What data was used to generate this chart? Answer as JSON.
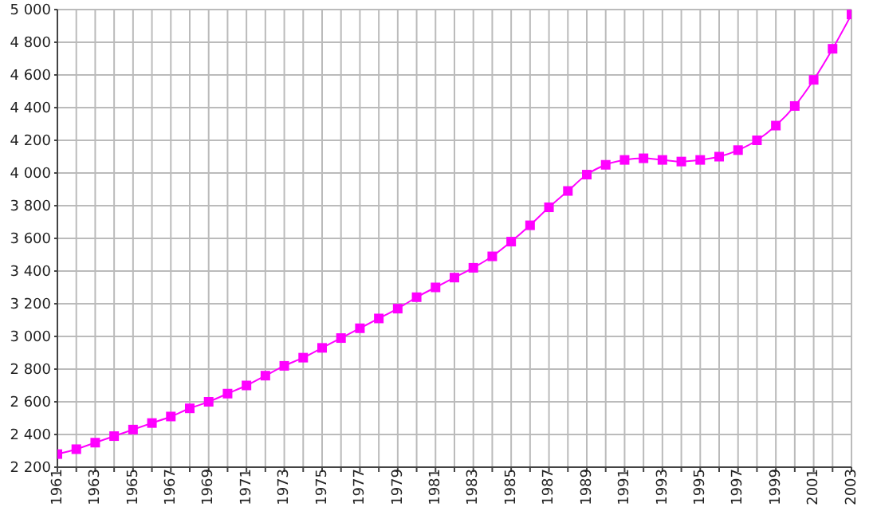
{
  "chart_data": {
    "type": "line",
    "x": [
      1961,
      1962,
      1963,
      1964,
      1965,
      1966,
      1967,
      1968,
      1969,
      1970,
      1971,
      1972,
      1973,
      1974,
      1975,
      1976,
      1977,
      1978,
      1979,
      1980,
      1981,
      1982,
      1983,
      1984,
      1985,
      1986,
      1987,
      1988,
      1989,
      1990,
      1991,
      1992,
      1993,
      1994,
      1995,
      1996,
      1997,
      1998,
      1999,
      2000,
      2001,
      2002,
      2003
    ],
    "series": [
      {
        "color": "#ff00ff",
        "values": [
          2280,
          2310,
          2350,
          2390,
          2430,
          2470,
          2510,
          2560,
          2600,
          2650,
          2700,
          2760,
          2820,
          2870,
          2930,
          2990,
          3050,
          3110,
          3170,
          3240,
          3300,
          3360,
          3420,
          3490,
          3580,
          3680,
          3790,
          3890,
          3990,
          4050,
          4080,
          4090,
          4080,
          4070,
          4080,
          4100,
          4140,
          4200,
          4290,
          4410,
          4570,
          4760,
          4970
        ]
      }
    ],
    "xlim": [
      1961,
      2003
    ],
    "xticks": [
      1961,
      {
        "value": 1962,
        "label": null
      },
      1963,
      {
        "value": 1964,
        "label": null
      },
      1965,
      {
        "value": 1966,
        "label": null
      },
      1967,
      {
        "value": 1968,
        "label": null
      },
      1969,
      {
        "value": 1970,
        "label": null
      },
      1971,
      {
        "value": 1972,
        "label": null
      },
      1973,
      {
        "value": 1974,
        "label": null
      },
      1975,
      {
        "value": 1976,
        "label": null
      },
      1977,
      {
        "value": 1978,
        "label": null
      },
      1979,
      {
        "value": 1980,
        "label": null
      },
      1981,
      {
        "value": 1982,
        "label": null
      },
      1983,
      {
        "value": 1984,
        "label": null
      },
      1985,
      {
        "value": 1986,
        "label": null
      },
      1987,
      {
        "value": 1988,
        "label": null
      },
      1989,
      {
        "value": 1990,
        "label": null
      },
      1991,
      {
        "value": 1992,
        "label": null
      },
      1993,
      {
        "value": 1994,
        "label": null
      },
      1995,
      {
        "value": 1996,
        "label": null
      },
      1997,
      {
        "value": 1998,
        "label": null
      },
      1999,
      {
        "value": 2000,
        "label": null
      },
      2001,
      {
        "value": 2002,
        "label": null
      },
      2003
    ],
    "ylim": [
      2200,
      5000
    ],
    "yticks": [
      {
        "value": 2200,
        "label": "2 200"
      },
      {
        "value": 2400,
        "label": "2 400"
      },
      {
        "value": 2600,
        "label": "2 600"
      },
      {
        "value": 2800,
        "label": "2 800"
      },
      {
        "value": 3000,
        "label": "3 000"
      },
      {
        "value": 3200,
        "label": "3 200"
      },
      {
        "value": 3400,
        "label": "3 400"
      },
      {
        "value": 3600,
        "label": "3 600"
      },
      {
        "value": 3800,
        "label": "3 800"
      },
      {
        "value": 4000,
        "label": "4 000"
      },
      {
        "value": 4200,
        "label": "4 200"
      },
      {
        "value": 4400,
        "label": "4 400"
      },
      {
        "value": 4600,
        "label": "4 600"
      },
      {
        "value": 4800,
        "label": "4 800"
      },
      {
        "value": 5000,
        "label": "5 000"
      }
    ],
    "grid": true,
    "marker": "square",
    "line_style": "solid"
  }
}
